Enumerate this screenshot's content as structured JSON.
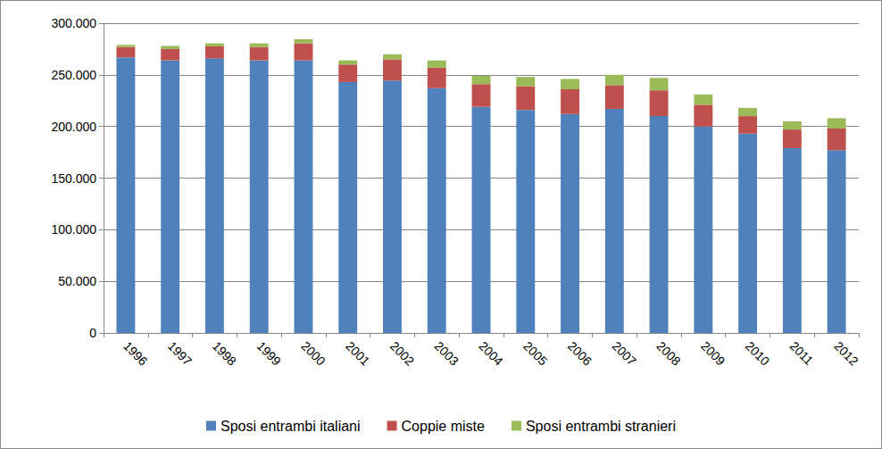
{
  "chart_data": {
    "type": "bar",
    "stacked": true,
    "grid": true,
    "legend": "bottom",
    "categories": [
      "1996",
      "1997",
      "1998",
      "1999",
      "2000",
      "2001",
      "2002",
      "2003",
      "2004",
      "2005",
      "2006",
      "2007",
      "2008",
      "2009",
      "2010",
      "2011",
      "2012"
    ],
    "series": [
      {
        "name": "Sposi entrambi italiani",
        "color": "#4f81bd",
        "values": [
          267000,
          264000,
          266000,
          264000,
          264000,
          243000,
          244500,
          237000,
          219000,
          216000,
          212000,
          217000,
          210000,
          200000,
          193000,
          179000,
          177000
        ]
      },
      {
        "name": "Coppie miste",
        "color": "#c0504d",
        "values": [
          10000,
          11000,
          11500,
          13000,
          16500,
          17000,
          20500,
          20000,
          22000,
          23000,
          24000,
          23000,
          25000,
          21000,
          17000,
          18000,
          21000
        ]
      },
      {
        "name": "Sposi entrambi stranieri",
        "color": "#9bbb59",
        "values": [
          2000,
          3000,
          3000,
          3500,
          4000,
          4000,
          5000,
          7000,
          8000,
          9000,
          10000,
          10000,
          12000,
          10000,
          8000,
          8000,
          10000
        ]
      }
    ],
    "ylim": [
      0,
      300000
    ],
    "yticks": [
      0,
      {
        "value": 50000,
        "label": "50.000"
      },
      {
        "value": 100000,
        "label": "100.000"
      },
      {
        "value": 150000,
        "label": "150.000"
      },
      {
        "value": 200000,
        "label": "200.000"
      },
      {
        "value": 250000,
        "label": "250.000"
      },
      {
        "value": 300000,
        "label": "300.000"
      }
    ]
  }
}
